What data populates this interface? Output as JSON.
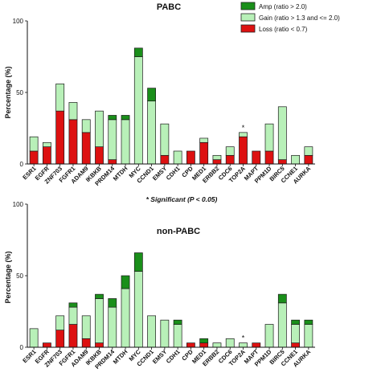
{
  "legend": {
    "items": [
      {
        "key": "amp",
        "label": "Amp (ratio > 2.0)",
        "color": "#1a8f1a"
      },
      {
        "key": "gain",
        "label": "Gain (ratio > 1.3 and <= 2.0)",
        "color": "#b8f0b8"
      },
      {
        "key": "loss",
        "label": "Loss (ratio < 0.7)",
        "color": "#dd1111"
      }
    ],
    "placement": "top-right"
  },
  "footnote": "* Significant (P < 0.05)",
  "chart_data": [
    {
      "type": "bar",
      "stacked": true,
      "title": "PABC",
      "ylabel": "Percentage (%)",
      "ylim": [
        0,
        100
      ],
      "yticks": [
        0,
        50,
        100
      ],
      "categories": [
        "ESR1",
        "EGFR",
        "ZNF703",
        "FGFR1",
        "ADAM9",
        "IKBKB",
        "PRDM14",
        "MTDH",
        "MYC",
        "CCND1",
        "EMSY",
        "CDH1",
        "CPD",
        "MED1",
        "ERBB2",
        "CDC6",
        "TOP2A",
        "MAPT",
        "PPM1D",
        "BIRC5",
        "CCNE1",
        "AURKA"
      ],
      "series": [
        {
          "name": "Loss (ratio < 0.7)",
          "key": "loss",
          "values": [
            9,
            12,
            37,
            31,
            22,
            12,
            3,
            0,
            0,
            0,
            6,
            0,
            9,
            15,
            3,
            6,
            19,
            9,
            9,
            3,
            0,
            6
          ]
        },
        {
          "name": "Gain (ratio > 1.3 and <= 2.0)",
          "key": "gain",
          "values": [
            10,
            3,
            19,
            12,
            9,
            25,
            28,
            31,
            75,
            44,
            22,
            9,
            0,
            3,
            3,
            6,
            3,
            0,
            19,
            37,
            6,
            6
          ]
        },
        {
          "name": "Amp (ratio > 2.0)",
          "key": "amp",
          "values": [
            0,
            0,
            0,
            0,
            0,
            0,
            3,
            3,
            6,
            9,
            0,
            0,
            0,
            0,
            0,
            0,
            0,
            0,
            0,
            0,
            0,
            0
          ]
        }
      ],
      "significant": [
        "TOP2A"
      ],
      "grid": false
    },
    {
      "type": "bar",
      "stacked": true,
      "title": "non-PABC",
      "ylabel": "Percentage (%)",
      "ylim": [
        0,
        100
      ],
      "yticks": [
        0,
        50,
        100
      ],
      "categories": [
        "ESR1",
        "EGFR",
        "ZNF703",
        "FGFR1",
        "ADAM9",
        "IKBKB",
        "PRDM14",
        "MTDH",
        "MYC",
        "CCND1",
        "EMSY",
        "CDH1",
        "CPD",
        "MED1",
        "ERBB2",
        "CDC6",
        "TOP2A",
        "MAPT",
        "PPM1D",
        "BIRC5",
        "CCNE1",
        "AURKA"
      ],
      "series": [
        {
          "name": "Loss (ratio < 0.7)",
          "key": "loss",
          "values": [
            0,
            3,
            12,
            16,
            6,
            3,
            0,
            0,
            0,
            0,
            0,
            0,
            3,
            3,
            0,
            0,
            0,
            3,
            0,
            0,
            3,
            0
          ]
        },
        {
          "name": "Gain (ratio > 1.3 and <= 2.0)",
          "key": "gain",
          "values": [
            13,
            0,
            10,
            12,
            16,
            31,
            28,
            41,
            53,
            22,
            19,
            16,
            0,
            0,
            3,
            6,
            3,
            0,
            16,
            31,
            13,
            16
          ]
        },
        {
          "name": "Amp (ratio > 2.0)",
          "key": "amp",
          "values": [
            0,
            0,
            0,
            3,
            0,
            3,
            6,
            9,
            13,
            0,
            0,
            3,
            0,
            3,
            0,
            0,
            0,
            0,
            0,
            6,
            3,
            3
          ]
        }
      ],
      "significant": [
        "TOP2A"
      ],
      "grid": false
    }
  ]
}
